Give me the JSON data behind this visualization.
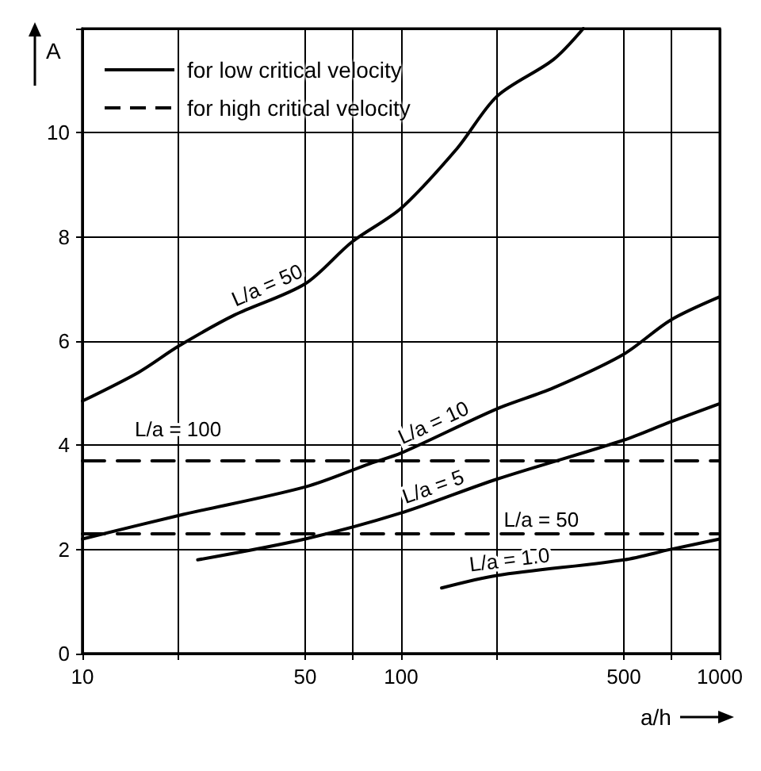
{
  "chart_data": {
    "type": "line",
    "xlabel": "a/h",
    "ylabel": "A",
    "annotations": [
      "for low critical velocity",
      "for high critical velocity"
    ],
    "log": "x",
    "xlim": [
      10,
      1000
    ],
    "ylim": [
      0,
      12
    ],
    "xticks": [
      10,
      {
        "value": 20,
        "label": null
      },
      50,
      {
        "value": 70,
        "label": null
      },
      100,
      {
        "value": 200,
        "label": null
      },
      500,
      {
        "value": 700,
        "label": null
      },
      1000
    ],
    "yticks": [
      0,
      2,
      4,
      6,
      8,
      10,
      {
        "value": 12,
        "label": null
      }
    ],
    "grid": true,
    "legend": false,
    "marker": "none",
    "series": [
      {
        "name": "L/a = 50",
        "color": "#000000",
        "line_style": "solid",
        "x": [
          10,
          15,
          20,
          30,
          50,
          70,
          100,
          150,
          200,
          300,
          373
        ],
        "values": [
          4.85,
          5.4,
          5.9,
          6.5,
          7.1,
          7.9,
          8.55,
          9.7,
          10.7,
          11.4,
          12
        ]
      },
      {
        "name": "L/a = 10",
        "color": "#000000",
        "line_style": "solid",
        "x": [
          10,
          20,
          50,
          80,
          100,
          200,
          300,
          500,
          700,
          1000
        ],
        "values": [
          2.2,
          2.65,
          3.2,
          3.65,
          3.85,
          4.7,
          5.1,
          5.75,
          6.4,
          6.85
        ]
      },
      {
        "name": "L/a = 5",
        "color": "#000000",
        "line_style": "solid",
        "x": [
          23,
          50,
          100,
          200,
          500,
          700,
          1000
        ],
        "values": [
          1.8,
          2.2,
          2.7,
          3.35,
          4.1,
          4.45,
          4.8
        ]
      },
      {
        "name": "L/a = 1.0",
        "color": "#000000",
        "line_style": "solid",
        "x": [
          134,
          200,
          500,
          700,
          1000
        ],
        "values": [
          1.26,
          1.5,
          1.8,
          2.0,
          2.2
        ]
      },
      {
        "name": "L/a = 100",
        "color": "#000000",
        "line_style": "dashed",
        "x": [
          10,
          1000
        ],
        "values": [
          3.7,
          3.7
        ]
      },
      {
        "name": "L/a = 50",
        "color": "#000000",
        "line_style": "dashed",
        "x": [
          10,
          1000
        ],
        "values": [
          2.3,
          2.3
        ]
      }
    ]
  }
}
